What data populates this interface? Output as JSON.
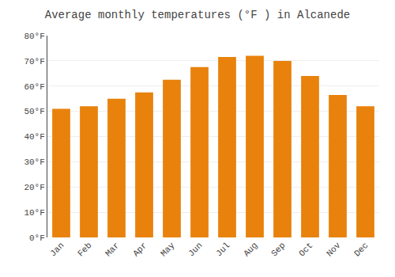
{
  "chart_data": {
    "type": "bar",
    "title": "Average monthly temperatures (°F ) in Alcanede",
    "categories": [
      "Jan",
      "Feb",
      "Mar",
      "Apr",
      "May",
      "Jun",
      "Jul",
      "Aug",
      "Sep",
      "Oct",
      "Nov",
      "Dec"
    ],
    "values": [
      51,
      52,
      55,
      57.5,
      62.5,
      67.5,
      71.5,
      72,
      70,
      64,
      56.5,
      52
    ],
    "color": "#E8820C",
    "ylim": [
      0,
      80
    ],
    "yticks": [
      {
        "value": 0,
        "label": "0°F"
      },
      {
        "value": 10,
        "label": "10°F"
      },
      {
        "value": 20,
        "label": "20°F"
      },
      {
        "value": 30,
        "label": "30°F"
      },
      {
        "value": 40,
        "label": "40°F"
      },
      {
        "value": 50,
        "label": "50°F"
      },
      {
        "value": 60,
        "label": "60°F"
      },
      {
        "value": 70,
        "label": "70°F"
      },
      {
        "value": 80,
        "label": "80°F"
      }
    ],
    "grid": true
  }
}
